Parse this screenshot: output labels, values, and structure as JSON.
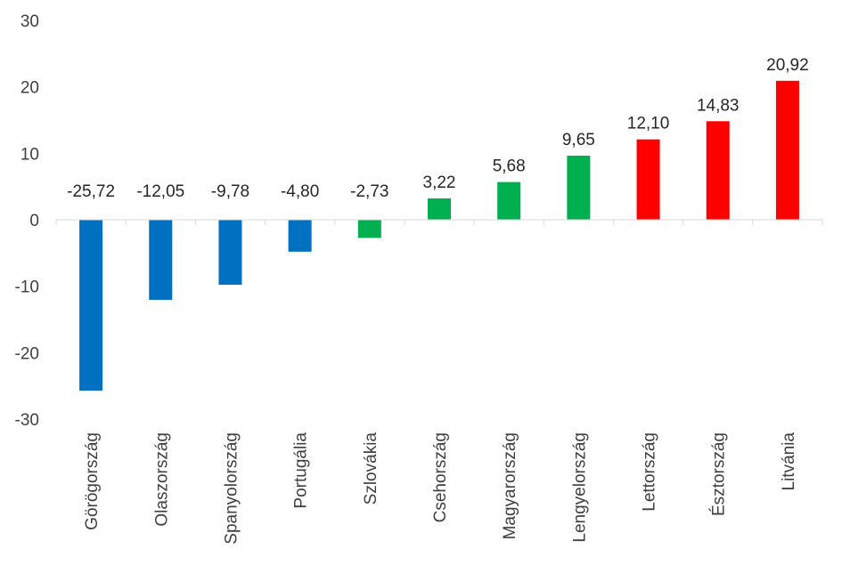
{
  "chart_data": {
    "type": "bar",
    "title": "",
    "xlabel": "",
    "ylabel": "",
    "ylim": [
      -30,
      30
    ],
    "yticks": [
      30,
      20,
      10,
      0,
      -10,
      -20,
      -30
    ],
    "grid": false,
    "legend": "none",
    "colors": {
      "blue": "#0070c0",
      "green": "#00b050",
      "red": "#ff0000"
    },
    "categories": [
      "Görögország",
      "Olaszország",
      "Spanyolország",
      "Portugália",
      "Szlovákia",
      "Csehország",
      "Magyarország",
      "Lengyelország",
      "Lettország",
      "Észtország",
      "Litvánia"
    ],
    "values": [
      -25.72,
      -12.05,
      -9.78,
      -4.8,
      -2.73,
      3.22,
      5.68,
      9.65,
      12.1,
      14.83,
      20.92
    ],
    "data_labels": [
      "-25,72",
      "-12,05",
      "-9,78",
      "-4,80",
      "-2,73",
      "3,22",
      "5,68",
      "9,65",
      "12,10",
      "14,83",
      "20,92"
    ],
    "bar_colors": [
      "#0070c0",
      "#0070c0",
      "#0070c0",
      "#0070c0",
      "#00b050",
      "#00b050",
      "#00b050",
      "#00b050",
      "#ff0000",
      "#ff0000",
      "#ff0000"
    ]
  }
}
